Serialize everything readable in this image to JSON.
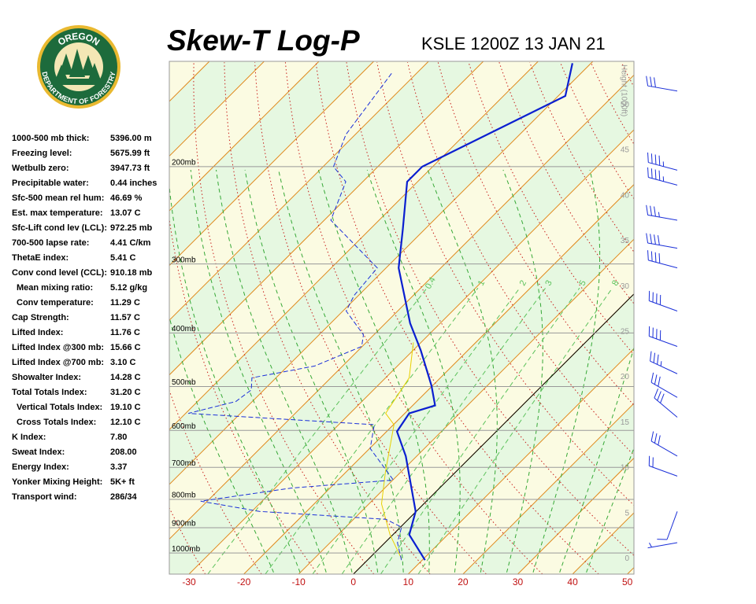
{
  "logo": {
    "top": "OREGON",
    "bottom": "DEPARTMENT OF FORESTRY"
  },
  "indices": [
    {
      "label": "1000-500 mb thick:",
      "value": "5396.00 m"
    },
    {
      "label": "Freezing level:",
      "value": "5675.99 ft"
    },
    {
      "label": "Wetbulb zero:",
      "value": "3947.73 ft"
    },
    {
      "label": "Precipitable water:",
      "value": "0.44 inches"
    },
    {
      "label": "Sfc-500 mean rel hum:",
      "value": "46.69 %"
    },
    {
      "label": "Est. max temperature:",
      "value": "13.07 C"
    },
    {
      "label": "Sfc-Lift cond lev (LCL):",
      "value": "972.25 mb"
    },
    {
      "label": "700-500 lapse rate:",
      "value": "4.41 C/km"
    },
    {
      "label": "ThetaE index:",
      "value": "5.41 C"
    },
    {
      "label": "Conv cond level (CCL):",
      "value": "910.18 mb"
    },
    {
      "label": "Mean mixing ratio:",
      "value": "5.12 g/kg",
      "indent": true
    },
    {
      "label": "Conv temperature:",
      "value": "11.29 C",
      "indent": true
    },
    {
      "label": "Cap Strength:",
      "value": "11.57 C"
    },
    {
      "label": "Lifted Index:",
      "value": "11.76 C"
    },
    {
      "label": "Lifted Index @300 mb:",
      "value": "15.66 C"
    },
    {
      "label": "Lifted Index @700 mb:",
      "value": "3.10 C"
    },
    {
      "label": "Showalter Index:",
      "value": "14.28 C"
    },
    {
      "label": "Total Totals Index:",
      "value": "31.20 C"
    },
    {
      "label": "Vertical Totals Index:",
      "value": "19.10 C",
      "indent": true
    },
    {
      "label": "Cross Totals Index:",
      "value": "12.10 C",
      "indent": true
    },
    {
      "label": "K Index:",
      "value": "7.80"
    },
    {
      "label": "Sweat Index:",
      "value": "208.00"
    },
    {
      "label": "Energy Index:",
      "value": "3.37"
    },
    {
      "label": "Yonker Mixing Height:",
      "value": "5K+ ft"
    },
    {
      "label": "Transport wind:",
      "value": "286/34"
    }
  ],
  "chart_data": {
    "type": "skewt",
    "title": "Skew-T Log-P",
    "subtitle": "KSLE 1200Z 13 JAN 21",
    "xlim": [
      -33.6,
      51.2
    ],
    "xticks": [
      -30,
      -20,
      -10,
      0,
      10,
      20,
      30,
      40,
      50
    ],
    "ylim": [
      1092,
      129
    ],
    "log_y": true,
    "yticks": [
      {
        "value": 200,
        "label": "200mb"
      },
      {
        "value": 300,
        "label": "300mb"
      },
      {
        "value": 400,
        "label": "400mb"
      },
      {
        "value": 500,
        "label": "500mb"
      },
      {
        "value": 600,
        "label": "600mb"
      },
      {
        "value": 700,
        "label": "700mb"
      },
      {
        "value": 800,
        "label": "800mb"
      },
      {
        "value": 900,
        "label": "900mb"
      },
      {
        "value": 1000,
        "label": "1000mb"
      }
    ],
    "y2label": "Height (1000ft)",
    "y2lim": [
      -1.7,
      54.8
    ],
    "y2ticks": [
      0,
      5,
      10,
      15,
      20,
      25,
      30,
      35,
      40,
      45,
      50
    ],
    "mixing_ratios": [
      0.4,
      1,
      2,
      3,
      5,
      8
    ],
    "highlight_isotherm": 0,
    "temperature": {
      "color": "#0a1fd0",
      "p": [
        1030,
        927,
        841,
        726,
        668,
        603,
        559,
        541,
        498,
        430,
        384,
        305,
        259,
        213,
        200,
        149,
        130
      ],
      "t": [
        10.5,
        3.0,
        -0.1,
        -7.7,
        -12,
        -18.1,
        -19.2,
        -15.9,
        -20.2,
        -28.6,
        -35.5,
        -47.7,
        -54.1,
        -61.9,
        -61.9,
        -48.7,
        -53.4
      ]
    },
    "dewpoint": {
      "color": "#1a2fd8",
      "p": [
        1030,
        958,
        898,
        869,
        841,
        806,
        763,
        738,
        647,
        586,
        559,
        532,
        507,
        482,
        459,
        423,
        403,
        365,
        342,
        305,
        250,
        213,
        200,
        175,
        135
      ],
      "t": [
        6.2,
        2.3,
        0.2,
        -4.1,
        -28.6,
        -41.2,
        -27.1,
        -9.9,
        -19.9,
        -23.5,
        -59.5,
        -53,
        -52.3,
        -54.4,
        -45.1,
        -40.1,
        -41.9,
        -49.4,
        -50.8,
        -51.6,
        -68.8,
        -73.1,
        -78.1,
        -81.7,
        -84.6
      ]
    },
    "wetbulb": {
      "color": "#e8d000",
      "p": [
        1023,
        927,
        815,
        714,
        586,
        559,
        482,
        416
      ],
      "t": [
        5.9,
        -0.5,
        -7.7,
        -12.8,
        -19.9,
        -23.5,
        -25.7,
        -31.4
      ]
    },
    "winds": [
      {
        "p": 146,
        "direction": 280,
        "speed": 30
      },
      {
        "p": 203,
        "direction": 285,
        "speed": 45
      },
      {
        "p": 216,
        "direction": 285,
        "speed": 45
      },
      {
        "p": 250,
        "direction": 280,
        "speed": 35
      },
      {
        "p": 281,
        "direction": 280,
        "speed": 40
      },
      {
        "p": 305,
        "direction": 285,
        "speed": 40
      },
      {
        "p": 365,
        "direction": 290,
        "speed": 40
      },
      {
        "p": 423,
        "direction": 290,
        "speed": 40
      },
      {
        "p": 474,
        "direction": 295,
        "speed": 35
      },
      {
        "p": 523,
        "direction": 300,
        "speed": 30
      },
      {
        "p": 568,
        "direction": 310,
        "speed": 30
      },
      {
        "p": 668,
        "direction": 300,
        "speed": 30
      },
      {
        "p": 726,
        "direction": 290,
        "speed": 20
      },
      {
        "p": 841,
        "direction": 200,
        "speed": 10
      },
      {
        "p": 958,
        "direction": 260,
        "speed": 5
      }
    ]
  }
}
